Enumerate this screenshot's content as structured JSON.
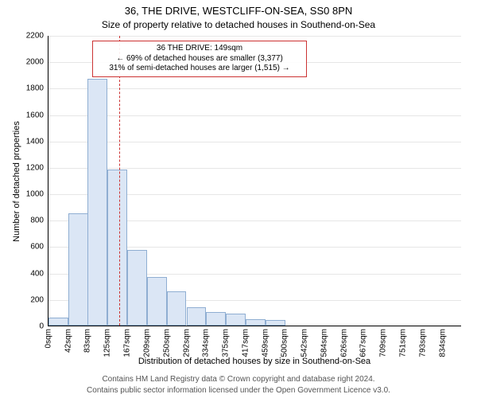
{
  "title_line1": "36, THE DRIVE, WESTCLIFF-ON-SEA, SS0 8PN",
  "title_line2": "Size of property relative to detached houses in Southend-on-Sea",
  "y_axis_label": "Number of detached properties",
  "x_axis_label": "Distribution of detached houses by size in Southend-on-Sea",
  "footer_line1": "Contains HM Land Registry data © Crown copyright and database right 2024.",
  "footer_line2": "Contains public sector information licensed under the Open Government Licence v3.0.",
  "annotation": {
    "line1": "36 THE DRIVE: 149sqm",
    "line2": "← 69% of detached houses are smaller (3,377)",
    "line3": "31% of semi-detached houses are larger (1,515) →",
    "border_color": "#cc3333",
    "fontsize": 10
  },
  "chart": {
    "type": "histogram",
    "background_color": "#ffffff",
    "grid_color": "#e6e6e6",
    "bar_fill": "#dbe6f5",
    "bar_border": "#8faed2",
    "marker_color": "#cc3333",
    "marker_x": 149,
    "ylim": [
      0,
      2200
    ],
    "ytick_step": 200,
    "xlim": [
      0,
      875
    ],
    "bin_width": 41.7,
    "bins": [
      {
        "start": 0,
        "count": 60
      },
      {
        "start": 42,
        "count": 850
      },
      {
        "start": 83,
        "count": 1870
      },
      {
        "start": 125,
        "count": 1180
      },
      {
        "start": 167,
        "count": 570
      },
      {
        "start": 209,
        "count": 370
      },
      {
        "start": 250,
        "count": 260
      },
      {
        "start": 292,
        "count": 140
      },
      {
        "start": 334,
        "count": 100
      },
      {
        "start": 375,
        "count": 90
      },
      {
        "start": 417,
        "count": 50
      },
      {
        "start": 459,
        "count": 40
      },
      {
        "start": 500,
        "count": 0
      },
      {
        "start": 542,
        "count": 0
      },
      {
        "start": 584,
        "count": 0
      },
      {
        "start": 626,
        "count": 0
      },
      {
        "start": 667,
        "count": 0
      },
      {
        "start": 709,
        "count": 0
      },
      {
        "start": 751,
        "count": 0
      },
      {
        "start": 793,
        "count": 0
      },
      {
        "start": 834,
        "count": 0
      }
    ],
    "x_tick_labels": [
      "0sqm",
      "42sqm",
      "83sqm",
      "125sqm",
      "167sqm",
      "209sqm",
      "250sqm",
      "292sqm",
      "334sqm",
      "375sqm",
      "417sqm",
      "459sqm",
      "500sqm",
      "542sqm",
      "584sqm",
      "626sqm",
      "667sqm",
      "709sqm",
      "751sqm",
      "793sqm",
      "834sqm"
    ],
    "title_fontsize": 13,
    "subtitle_fontsize": 12,
    "axis_label_fontsize": 11,
    "tick_fontsize": 10
  }
}
